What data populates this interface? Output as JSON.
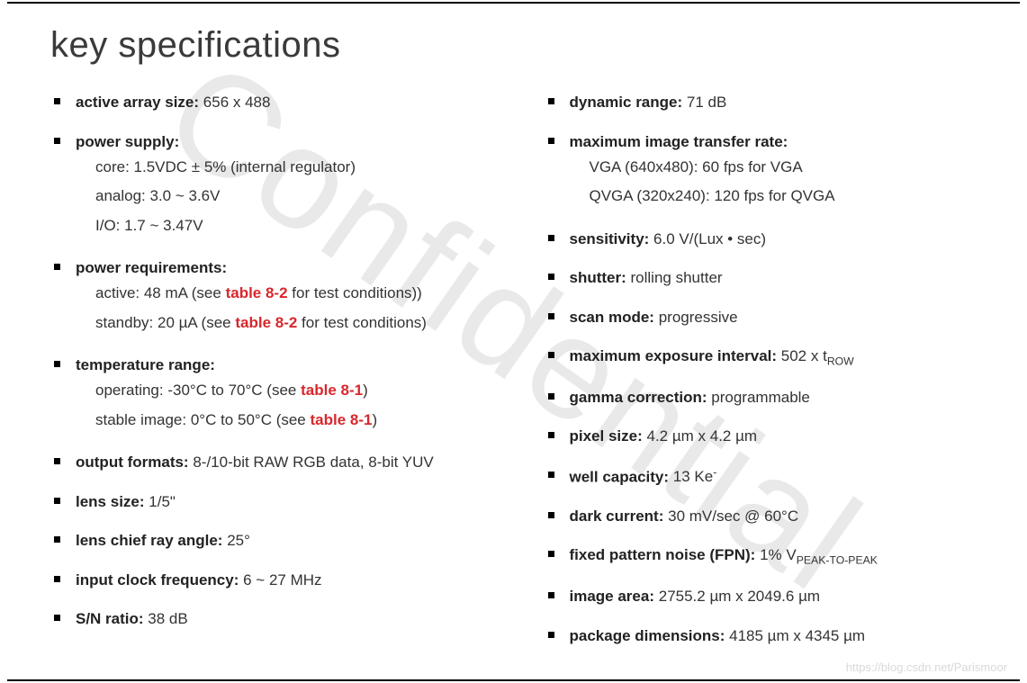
{
  "title": "key specifications",
  "watermark": "Confidential",
  "footer": "https://blog.csdn.net/Parismoor",
  "colors": {
    "text": "#333333",
    "heading": "#3a3a3a",
    "link_red": "#d9272d",
    "watermark": "#e9e9e9",
    "rule": "#000000",
    "footer": "#d9d9d9",
    "background": "#ffffff"
  },
  "typography": {
    "title_fontsize": 40,
    "body_fontsize": 17,
    "font_family": "Arial"
  },
  "left": [
    {
      "label": "active array size:",
      "value": "656 x 488"
    },
    {
      "label": "power supply:",
      "sub": [
        {
          "text": "core: 1.5VDC ± 5% (internal regulator)"
        },
        {
          "text": "analog: 3.0 ~ 3.6V"
        },
        {
          "text": "I/O: 1.7 ~ 3.47V"
        }
      ]
    },
    {
      "label": "power requirements:",
      "sub": [
        {
          "pre": "active: 48 mA (see ",
          "ref": "table 8-2",
          "post": " for test conditions))"
        },
        {
          "pre": "standby: 20 µA (see ",
          "ref": "table 8-2",
          "post": " for test conditions)"
        }
      ]
    },
    {
      "label": "temperature range:",
      "sub": [
        {
          "pre": "operating: -30°C to 70°C (see ",
          "ref": "table 8-1",
          "post": ")"
        },
        {
          "pre": "stable image: 0°C to 50°C (see ",
          "ref": "table 8-1",
          "post": ")"
        }
      ]
    },
    {
      "label": "output formats:",
      "value": "8-/10-bit RAW RGB data, 8-bit YUV"
    },
    {
      "label": "lens size:",
      "value": "1/5\""
    },
    {
      "label": "lens chief ray angle:",
      "value": "25°"
    },
    {
      "label": "input clock frequency:",
      "value": "6 ~ 27 MHz"
    },
    {
      "label": "S/N ratio:",
      "value": "38 dB"
    }
  ],
  "right": [
    {
      "label": "dynamic range:",
      "value": "71 dB"
    },
    {
      "label": "maximum image transfer rate:",
      "sub": [
        {
          "text": "VGA (640x480): 60 fps for VGA"
        },
        {
          "text": "QVGA (320x240): 120 fps for QVGA"
        }
      ]
    },
    {
      "label": "sensitivity:",
      "value": "6.0 V/(Lux • sec)"
    },
    {
      "label": "shutter:",
      "value": "rolling shutter"
    },
    {
      "label": "scan mode:",
      "value": "progressive"
    },
    {
      "label": "maximum exposure interval:",
      "html": "502 x t<sub class=\"s\">ROW</sub>"
    },
    {
      "label": "gamma correction:",
      "value": "programmable"
    },
    {
      "label": "pixel size:",
      "value": "4.2 µm x 4.2 µm"
    },
    {
      "label": "well capacity:",
      "html": "13 Ke<sup class=\"s\">-</sup>"
    },
    {
      "label": "dark current:",
      "value": "30 mV/sec @ 60°C"
    },
    {
      "label": "fixed pattern noise (FPN):",
      "html": "1% V<sub class=\"s\">PEAK-TO-PEAK</sub>"
    },
    {
      "label": "image area:",
      "value": "2755.2 µm x 2049.6 µm"
    },
    {
      "label": "package dimensions:",
      "value": "4185 µm x 4345 µm"
    }
  ]
}
